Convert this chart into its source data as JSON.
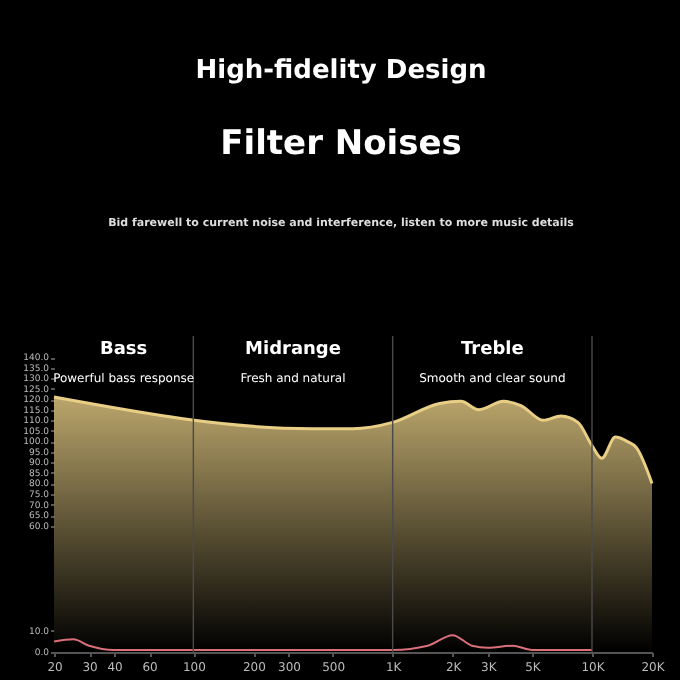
{
  "chart_data": {
    "type": "area",
    "title": "High-fidelity Design",
    "subtitle": "Filter Noises",
    "annotations": [
      "Bid farewell to current noise and interference, listen to more music details",
      "Bass",
      "Powerful bass response",
      "Midrange",
      "Fresh and natural",
      "Treble",
      "Smooth and clear sound"
    ],
    "log": "x",
    "xlim": [
      20,
      20000
    ],
    "xticks": [
      20,
      30,
      40,
      60,
      100,
      200,
      300,
      500,
      {
        "value": 1000,
        "label": "1K"
      },
      {
        "value": 2000,
        "label": "2K"
      },
      {
        "value": 3000,
        "label": "3K"
      },
      {
        "value": 5000,
        "label": "5K"
      },
      {
        "value": 10000,
        "label": "10K"
      },
      {
        "value": 20000,
        "label": "20K"
      }
    ],
    "ylim": [
      0,
      150
    ],
    "yticks": [
      {
        "value": 0,
        "label": "0.0"
      },
      {
        "value": 10,
        "label": "10.0"
      },
      {
        "value": 60,
        "label": "60.0"
      },
      {
        "value": 65,
        "label": "65.0"
      },
      {
        "value": 70,
        "label": "70.0"
      },
      {
        "value": 75,
        "label": "75.0"
      },
      {
        "value": 80,
        "label": "80.0"
      },
      {
        "value": 85,
        "label": "85.0"
      },
      {
        "value": 90,
        "label": "90.0"
      },
      {
        "value": 95,
        "label": "95.0"
      },
      {
        "value": 100,
        "label": "100.0"
      },
      {
        "value": 105,
        "label": "105.0"
      },
      {
        "value": 110,
        "label": "110.0"
      },
      {
        "value": 115,
        "label": "115.0"
      },
      {
        "value": 120,
        "label": "120.0"
      },
      {
        "value": 125,
        "label": "125.0"
      },
      {
        "value": 130,
        "label": "130.0"
      },
      {
        "value": 135,
        "label": "135.0"
      },
      {
        "value": 140,
        "label": "140.0"
      }
    ],
    "grid": false,
    "ref_lines": [
      {
        "axis": "x",
        "value": 100,
        "color": "#4a4a4a"
      },
      {
        "axis": "x",
        "value": 1000,
        "color": "#4a4a4a"
      },
      {
        "axis": "x",
        "value": 10000,
        "color": "#4a4a4a"
      }
    ],
    "series": [
      {
        "color": "#e9cf86",
        "x": [
          20,
          394,
          631,
          1000,
          1720,
          2200,
          2700,
          3600,
          4400,
          5700,
          7000,
          8500,
          10000,
          11200,
          13100,
          15000,
          16700,
          20000
        ],
        "values": [
          121,
          106,
          106,
          109,
          118,
          119,
          115,
          119,
          117,
          110,
          112,
          109,
          98,
          92,
          102,
          100,
          97,
          80
        ]
      },
      {
        "type": "line",
        "color": "#d9707a",
        "x": [
          20,
          25,
          30,
          40,
          100,
          1000,
          1500,
          2000,
          2500,
          3000,
          4000,
          5000,
          6000,
          10000
        ],
        "values": [
          5,
          6,
          3,
          1,
          1,
          1,
          3,
          8,
          3,
          2,
          3,
          1,
          1,
          1
        ]
      }
    ]
  }
}
